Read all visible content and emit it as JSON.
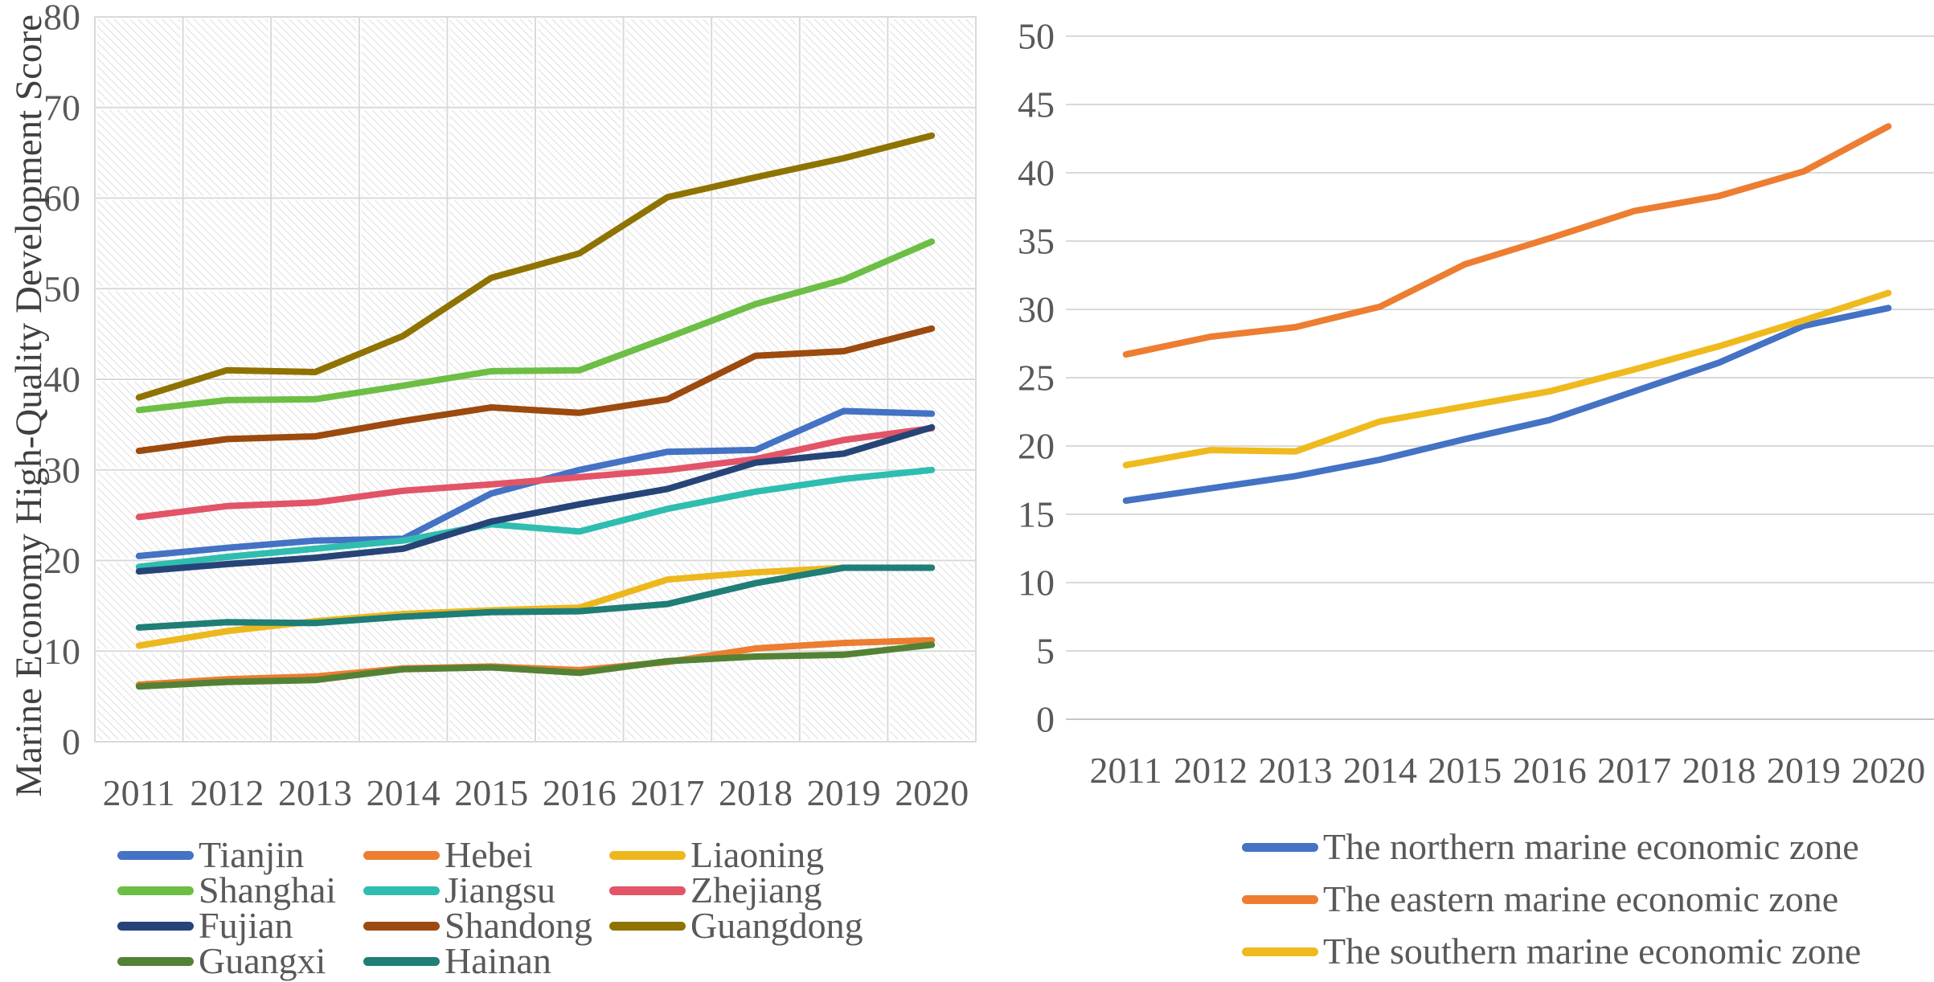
{
  "figure": {
    "background_color": "#ffffff",
    "grid_color": "#d9d9d9",
    "tick_text_color": "#595959",
    "axis_title_color": "#404040"
  },
  "chart_data": [
    {
      "type": "line",
      "title": "",
      "xlabel": "",
      "ylabel": "Marine Economy High-Quality Development Score",
      "x": [
        "2011",
        "2012",
        "2013",
        "2014",
        "2015",
        "2016",
        "2017",
        "2018",
        "2019",
        "2020"
      ],
      "ylim": [
        0,
        80
      ],
      "ytick_step": 10,
      "yticks": [
        "0",
        "10",
        "20",
        "30",
        "40",
        "50",
        "60",
        "70",
        "80"
      ],
      "grid": "horizontal+vertical",
      "plot_area_fill": "light-diagonal-hatch",
      "legend_position": "bottom",
      "series": [
        {
          "name": "Tianjin",
          "color": "#4472C4",
          "values": [
            20.5,
            21.4,
            22.2,
            22.4,
            27.4,
            30.0,
            32.0,
            32.2,
            36.5,
            36.2
          ]
        },
        {
          "name": "Hebei",
          "color": "#ED7D31",
          "values": [
            6.3,
            6.9,
            7.2,
            8.1,
            8.3,
            7.9,
            8.8,
            10.3,
            10.9,
            11.2
          ]
        },
        {
          "name": "Liaoning",
          "color": "#EDB81E",
          "values": [
            10.6,
            12.2,
            13.3,
            14.1,
            14.5,
            14.8,
            17.9,
            18.7,
            19.2,
            19.2
          ]
        },
        {
          "name": "Shanghai",
          "color": "#6DBE45",
          "values": [
            36.6,
            37.7,
            37.8,
            39.3,
            40.9,
            41.0,
            44.6,
            48.3,
            51.0,
            55.2
          ]
        },
        {
          "name": "Jiangsu",
          "color": "#2FBDB0",
          "values": [
            19.3,
            20.4,
            21.3,
            22.2,
            24.0,
            23.2,
            25.7,
            27.6,
            29.0,
            30.0
          ]
        },
        {
          "name": "Zhejiang",
          "color": "#E25468",
          "values": [
            24.8,
            26.0,
            26.4,
            27.7,
            28.4,
            29.2,
            30.0,
            31.2,
            33.3,
            34.6
          ]
        },
        {
          "name": "Fujian",
          "color": "#264478",
          "values": [
            18.8,
            19.6,
            20.3,
            21.3,
            24.3,
            26.2,
            27.9,
            30.8,
            31.8,
            34.7
          ]
        },
        {
          "name": "Shandong",
          "color": "#9C4A0F",
          "values": [
            32.1,
            33.4,
            33.7,
            35.4,
            36.9,
            36.3,
            37.8,
            42.6,
            43.1,
            45.6
          ]
        },
        {
          "name": "Guangdong",
          "color": "#8F7300",
          "values": [
            38.0,
            41.0,
            40.8,
            44.8,
            51.2,
            53.9,
            60.1,
            62.3,
            64.4,
            66.9
          ]
        },
        {
          "name": "Guangxi",
          "color": "#548235",
          "values": [
            6.1,
            6.6,
            6.8,
            8.0,
            8.2,
            7.6,
            8.9,
            9.4,
            9.6,
            10.7
          ]
        },
        {
          "name": "Hainan",
          "color": "#1F7E76",
          "values": [
            12.6,
            13.2,
            13.1,
            13.8,
            14.3,
            14.4,
            15.2,
            17.5,
            19.2,
            19.2
          ]
        }
      ]
    },
    {
      "type": "line",
      "title": "",
      "xlabel": "",
      "ylabel": "",
      "x": [
        "2011",
        "2012",
        "2013",
        "2014",
        "2015",
        "2016",
        "2017",
        "2018",
        "2019",
        "2020"
      ],
      "ylim": [
        0,
        50
      ],
      "ytick_step": 5,
      "yticks": [
        "0",
        "5",
        "10",
        "15",
        "20",
        "25",
        "30",
        "35",
        "40",
        "45",
        "50"
      ],
      "grid": "horizontal",
      "plot_area_fill": "none",
      "legend_position": "bottom",
      "series": [
        {
          "name": "The northern marine economic zone",
          "color": "#4472C4",
          "values": [
            16.0,
            16.9,
            17.8,
            19.0,
            20.5,
            21.9,
            24.0,
            26.1,
            28.8,
            30.1
          ]
        },
        {
          "name": "The eastern marine economic zone",
          "color": "#ED7D31",
          "values": [
            26.7,
            28.0,
            28.7,
            30.2,
            33.3,
            35.2,
            37.2,
            38.3,
            40.1,
            43.4
          ]
        },
        {
          "name": "The southern marine economic zone",
          "color": "#EFBA1E",
          "values": [
            18.6,
            19.7,
            19.6,
            21.8,
            22.9,
            24.0,
            25.6,
            27.3,
            29.2,
            31.2
          ]
        }
      ]
    }
  ]
}
